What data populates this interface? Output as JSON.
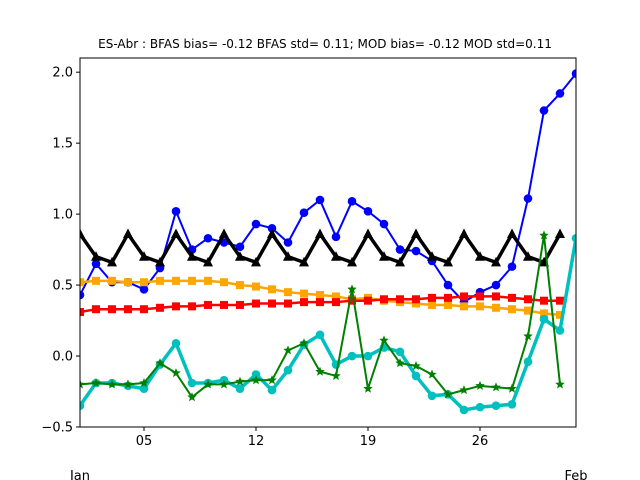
{
  "chart_data": {
    "type": "line",
    "title": "ES-Abr   : BFAS bias= -0.12 BFAS std= 0.11; MOD bias= -0.12 MOD std=0.11",
    "xlabel": "",
    "ylabel": "",
    "xlim": [
      1,
      32
    ],
    "ylim": [
      -0.5,
      2.1
    ],
    "x_tick_values": [
      5,
      12,
      19,
      26
    ],
    "x_tick_labels": [
      "05",
      "12",
      "19",
      "26"
    ],
    "x_secondary_labels": [
      {
        "x": 1,
        "label": "Jan"
      },
      {
        "x": 32,
        "label": "Feb"
      }
    ],
    "y_tick_values": [
      -0.5,
      0.0,
      0.5,
      1.0,
      1.5,
      2.0
    ],
    "y_tick_labels": [
      "−0.5",
      "0.0",
      "0.5",
      "1.0",
      "1.5",
      "2.0"
    ],
    "grid": false,
    "x": [
      1,
      2,
      3,
      4,
      5,
      6,
      7,
      8,
      9,
      10,
      11,
      12,
      13,
      14,
      15,
      16,
      17,
      18,
      19,
      20,
      21,
      22,
      23,
      24,
      25,
      26,
      27,
      28,
      29,
      30,
      31,
      32
    ],
    "series": [
      {
        "color": "#0000ff",
        "marker": "circle",
        "linewidth": 2,
        "values": [
          0.43,
          0.65,
          0.52,
          0.52,
          0.47,
          0.62,
          1.02,
          0.75,
          0.83,
          0.8,
          0.77,
          0.93,
          0.9,
          0.8,
          1.01,
          1.1,
          0.84,
          1.09,
          1.02,
          0.93,
          0.75,
          0.74,
          0.67,
          0.5,
          0.38,
          0.45,
          0.5,
          0.63,
          1.11,
          1.73,
          1.85,
          1.99
        ]
      },
      {
        "color": "#000000",
        "marker": "triangle",
        "linewidth": 3.5,
        "values": [
          0.86,
          0.7,
          0.66,
          0.86,
          0.7,
          0.66,
          0.86,
          0.7,
          0.66,
          0.86,
          0.7,
          0.66,
          0.86,
          0.7,
          0.66,
          0.86,
          0.7,
          0.66,
          0.86,
          0.7,
          0.66,
          0.86,
          0.7,
          0.66,
          0.86,
          0.7,
          0.66,
          0.86,
          0.7,
          0.66,
          0.86,
          null
        ]
      },
      {
        "color": "#ffa500",
        "marker": "square",
        "linewidth": 2.5,
        "values": [
          0.52,
          0.53,
          0.53,
          0.52,
          0.52,
          0.53,
          0.53,
          0.53,
          0.53,
          0.52,
          0.5,
          0.49,
          0.47,
          0.45,
          0.44,
          0.43,
          0.42,
          0.4,
          0.41,
          0.39,
          0.38,
          0.37,
          0.36,
          0.36,
          0.35,
          0.35,
          0.34,
          0.33,
          0.32,
          0.3,
          0.29,
          null
        ]
      },
      {
        "color": "#ff0000",
        "marker": "square",
        "linewidth": 2.5,
        "values": [
          0.31,
          0.33,
          0.33,
          0.33,
          0.33,
          0.34,
          0.35,
          0.35,
          0.36,
          0.36,
          0.36,
          0.37,
          0.37,
          0.37,
          0.38,
          0.38,
          0.38,
          0.39,
          0.39,
          0.4,
          0.4,
          0.4,
          0.41,
          0.41,
          0.42,
          0.42,
          0.42,
          0.41,
          0.4,
          0.39,
          0.39,
          null
        ]
      },
      {
        "color": "#00bfbf",
        "marker": "circle",
        "linewidth": 3.5,
        "values": [
          -0.35,
          -0.19,
          -0.19,
          -0.21,
          -0.23,
          -0.06,
          0.09,
          -0.19,
          -0.19,
          -0.17,
          -0.23,
          -0.13,
          -0.24,
          -0.1,
          0.08,
          0.15,
          -0.06,
          0.0,
          0.0,
          0.06,
          0.03,
          -0.14,
          -0.28,
          -0.27,
          -0.38,
          -0.36,
          -0.35,
          -0.34,
          -0.04,
          0.26,
          0.18,
          0.83
        ]
      },
      {
        "color": "#008000",
        "marker": "star",
        "linewidth": 2,
        "values": [
          -0.2,
          -0.19,
          -0.2,
          -0.2,
          -0.19,
          -0.05,
          -0.12,
          -0.29,
          -0.2,
          -0.2,
          -0.18,
          -0.17,
          -0.17,
          0.04,
          0.09,
          -0.11,
          -0.14,
          0.47,
          -0.23,
          0.11,
          -0.05,
          -0.07,
          -0.13,
          -0.27,
          -0.24,
          -0.21,
          -0.22,
          -0.23,
          0.14,
          0.85,
          -0.2,
          null
        ]
      }
    ]
  }
}
